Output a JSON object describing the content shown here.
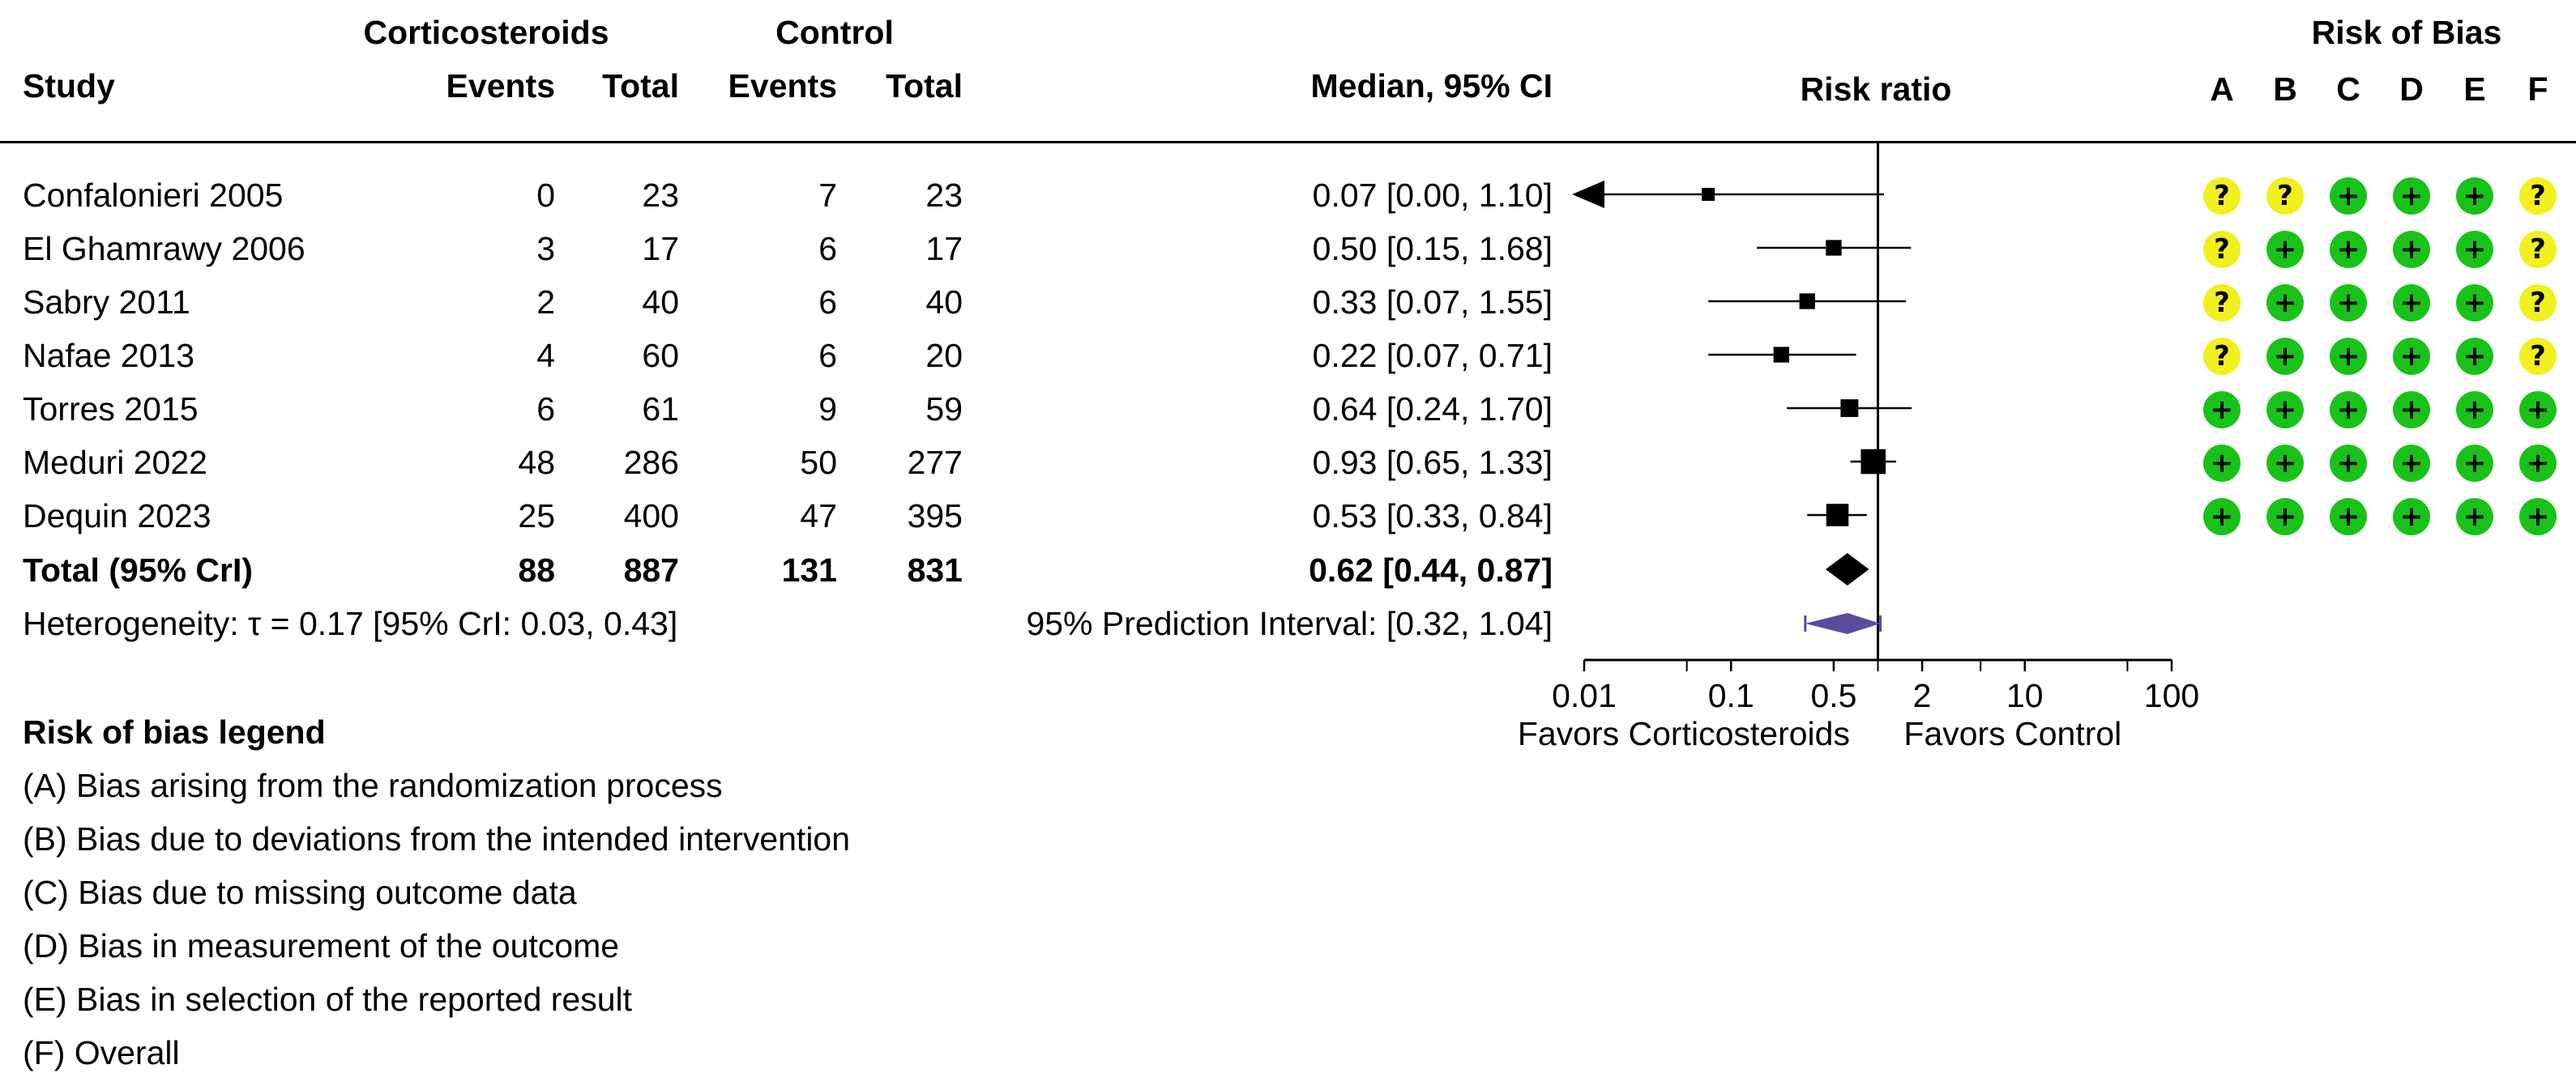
{
  "headers": {
    "group1": "Corticosteroids",
    "group2": "Control",
    "study": "Study",
    "events1": "Events",
    "total1": "Total",
    "events2": "Events",
    "total2": "Total",
    "ci": "Median, 95% CI",
    "plot": "Risk ratio",
    "rob": "Risk of Bias",
    "rob_domains": [
      "A",
      "B",
      "C",
      "D",
      "E",
      "F"
    ]
  },
  "studies": [
    {
      "name": "Confalonieri 2005",
      "e1": "0",
      "t1": "23",
      "e2": "7",
      "t2": "23",
      "ci_text": "0.07 [0.00, 1.10]",
      "rob": [
        "?",
        "?",
        "+",
        "+",
        "+",
        "?"
      ]
    },
    {
      "name": "El Ghamrawy 2006",
      "e1": "3",
      "t1": "17",
      "e2": "6",
      "t2": "17",
      "ci_text": "0.50 [0.15, 1.68]",
      "rob": [
        "?",
        "+",
        "+",
        "+",
        "+",
        "?"
      ]
    },
    {
      "name": "Sabry 2011",
      "e1": "2",
      "t1": "40",
      "e2": "6",
      "t2": "40",
      "ci_text": "0.33 [0.07, 1.55]",
      "rob": [
        "?",
        "+",
        "+",
        "+",
        "+",
        "?"
      ]
    },
    {
      "name": "Nafae 2013",
      "e1": "4",
      "t1": "60",
      "e2": "6",
      "t2": "20",
      "ci_text": "0.22 [0.07, 0.71]",
      "rob": [
        "?",
        "+",
        "+",
        "+",
        "+",
        "?"
      ]
    },
    {
      "name": "Torres 2015",
      "e1": "6",
      "t1": "61",
      "e2": "9",
      "t2": "59",
      "ci_text": "0.64 [0.24, 1.70]",
      "rob": [
        "+",
        "+",
        "+",
        "+",
        "+",
        "+"
      ]
    },
    {
      "name": "Meduri 2022",
      "e1": "48",
      "t1": "286",
      "e2": "50",
      "t2": "277",
      "ci_text": "0.93 [0.65, 1.33]",
      "rob": [
        "+",
        "+",
        "+",
        "+",
        "+",
        "+"
      ]
    },
    {
      "name": "Dequin 2023",
      "e1": "25",
      "t1": "400",
      "e2": "47",
      "t2": "395",
      "ci_text": "0.53 [0.33, 0.84]",
      "rob": [
        "+",
        "+",
        "+",
        "+",
        "+",
        "+"
      ]
    }
  ],
  "total": {
    "name": "Total (95% CrI)",
    "e1": "88",
    "t1": "887",
    "e2": "131",
    "t2": "831",
    "ci_text": "0.62 [0.44,  0.87]"
  },
  "heterogeneity": "Heterogeneity: τ = 0.17 [95% CrI: 0.03, 0.43]",
  "prediction": "95% Prediction Interval: [0.32, 1.04]",
  "axis": {
    "ticks": [
      0.01,
      0.1,
      0.5,
      2,
      10,
      100
    ],
    "tick_labels": [
      "0.01",
      "0.1",
      "0.5",
      "2",
      "10",
      "100"
    ],
    "favors_left": "Favors Corticosteroids",
    "favors_right": "Favors Control"
  },
  "legend": {
    "title": "Risk of bias legend",
    "items": [
      "(A) Bias arising from the randomization process",
      "(B) Bias due to deviations from the intended intervention",
      "(C) Bias due to missing outcome data",
      "(D) Bias in measurement of the outcome",
      "(E) Bias in selection of the reported result",
      "(F) Overall"
    ]
  },
  "colors": {
    "low_risk": "#19c219",
    "some_concerns": "#f0f01e",
    "prediction_interval": "#5b4a9e",
    "marker": "#000000"
  },
  "chart_data": {
    "type": "forest",
    "xlabel": "Risk ratio",
    "x_scale": "log",
    "xlim": [
      0.01,
      100
    ],
    "null_line": 1,
    "studies": [
      {
        "study": "Confalonieri 2005",
        "estimate": 0.07,
        "lower": 0.0,
        "upper": 1.1,
        "weight": 1
      },
      {
        "study": "El Ghamrawy 2006",
        "estimate": 0.5,
        "lower": 0.15,
        "upper": 1.68,
        "weight": 2
      },
      {
        "study": "Sabry 2011",
        "estimate": 0.33,
        "lower": 0.07,
        "upper": 1.55,
        "weight": 2
      },
      {
        "study": "Nafae 2013",
        "estimate": 0.22,
        "lower": 0.07,
        "upper": 0.71,
        "weight": 2
      },
      {
        "study": "Torres 2015",
        "estimate": 0.64,
        "lower": 0.24,
        "upper": 1.7,
        "weight": 3
      },
      {
        "study": "Meduri 2022",
        "estimate": 0.93,
        "lower": 0.65,
        "upper": 1.33,
        "weight": 8
      },
      {
        "study": "Dequin 2023",
        "estimate": 0.53,
        "lower": 0.33,
        "upper": 0.84,
        "weight": 6
      }
    ],
    "pooled": {
      "estimate": 0.62,
      "lower": 0.44,
      "upper": 0.87
    },
    "prediction_interval": {
      "lower": 0.32,
      "upper": 1.04
    }
  }
}
